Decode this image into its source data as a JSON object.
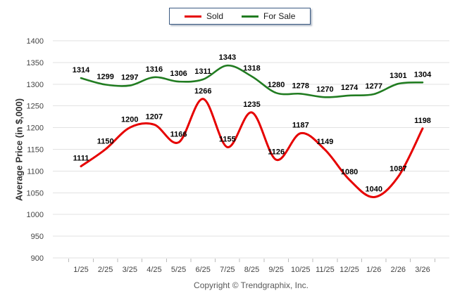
{
  "legend": {
    "items": [
      {
        "label": "Sold",
        "color": "#e60000"
      },
      {
        "label": "For Sale",
        "color": "#217c21"
      }
    ]
  },
  "footer": "Copyright © Trendgraphix, Inc.",
  "chart_data": {
    "type": "line",
    "title": "",
    "ylabel": "Average Price (in $,000)",
    "xlabel": "",
    "categories": [
      "1/25",
      "2/25",
      "3/25",
      "4/25",
      "5/25",
      "6/25",
      "7/25",
      "8/25",
      "9/25",
      "10/25",
      "11/25",
      "12/25",
      "1/26",
      "2/26",
      "3/26"
    ],
    "series": [
      {
        "name": "Sold",
        "color": "#e60000",
        "values": [
          1111,
          1150,
          1200,
          1207,
          1166,
          1266,
          1155,
          1235,
          1126,
          1187,
          1149,
          1080,
          1040,
          1087,
          1198
        ]
      },
      {
        "name": "For Sale",
        "color": "#217c21",
        "values": [
          1314,
          1299,
          1297,
          1316,
          1306,
          1311,
          1343,
          1318,
          1280,
          1278,
          1270,
          1274,
          1277,
          1301,
          1304
        ]
      }
    ],
    "ylim": [
      900,
      1400
    ],
    "ytick_step": 50,
    "grid": true,
    "legend_position": "top",
    "data_labels": true,
    "gridline_color": "#e2e2e2",
    "tick_label_color": "#444444"
  }
}
